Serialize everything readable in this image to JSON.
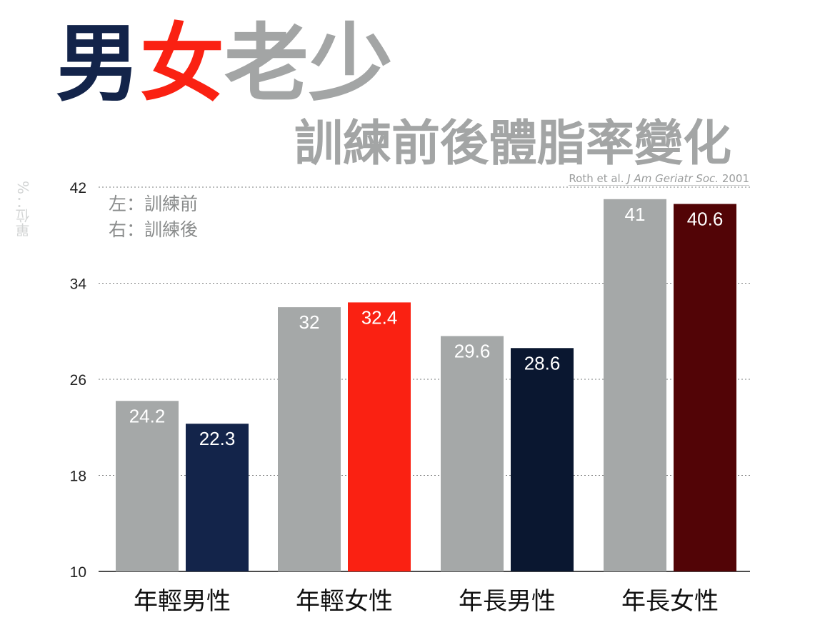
{
  "title": {
    "part1": "男",
    "part1_color": "#13244a",
    "part2": "女",
    "part2_color": "#fa2112",
    "part3": "老少",
    "part3_color": "#a3a5a5"
  },
  "subtitle": "訓練前後體脂率變化",
  "citation": {
    "author": "Roth et al.",
    "journal": "J Am Geriatr Soc.",
    "year": "2001"
  },
  "unit_label": "單位：%",
  "legend": {
    "before": "左：訓練前",
    "after": "右：訓練後"
  },
  "chart_data": {
    "type": "bar",
    "categories": [
      "年輕男性",
      "年輕女性",
      "年長男性",
      "年長女性"
    ],
    "series": [
      {
        "values": [
          24.2,
          32,
          29.6,
          41
        ],
        "colors": [
          "#a5a8a8",
          "#a5a8a8",
          "#a5a8a8",
          "#a5a8a8"
        ]
      },
      {
        "values": [
          22.3,
          32.4,
          28.6,
          40.6
        ],
        "colors": [
          "#13244a",
          "#fa2112",
          "#0a1730",
          "#520406"
        ]
      }
    ],
    "value_labels": [
      [
        "24.2",
        "32",
        "29.6",
        "41"
      ],
      [
        "22.3",
        "32.4",
        "28.6",
        "40.6"
      ]
    ],
    "yticks": [
      10,
      18,
      26,
      34,
      42
    ],
    "ylim": [
      10,
      42
    ],
    "grid": true
  }
}
